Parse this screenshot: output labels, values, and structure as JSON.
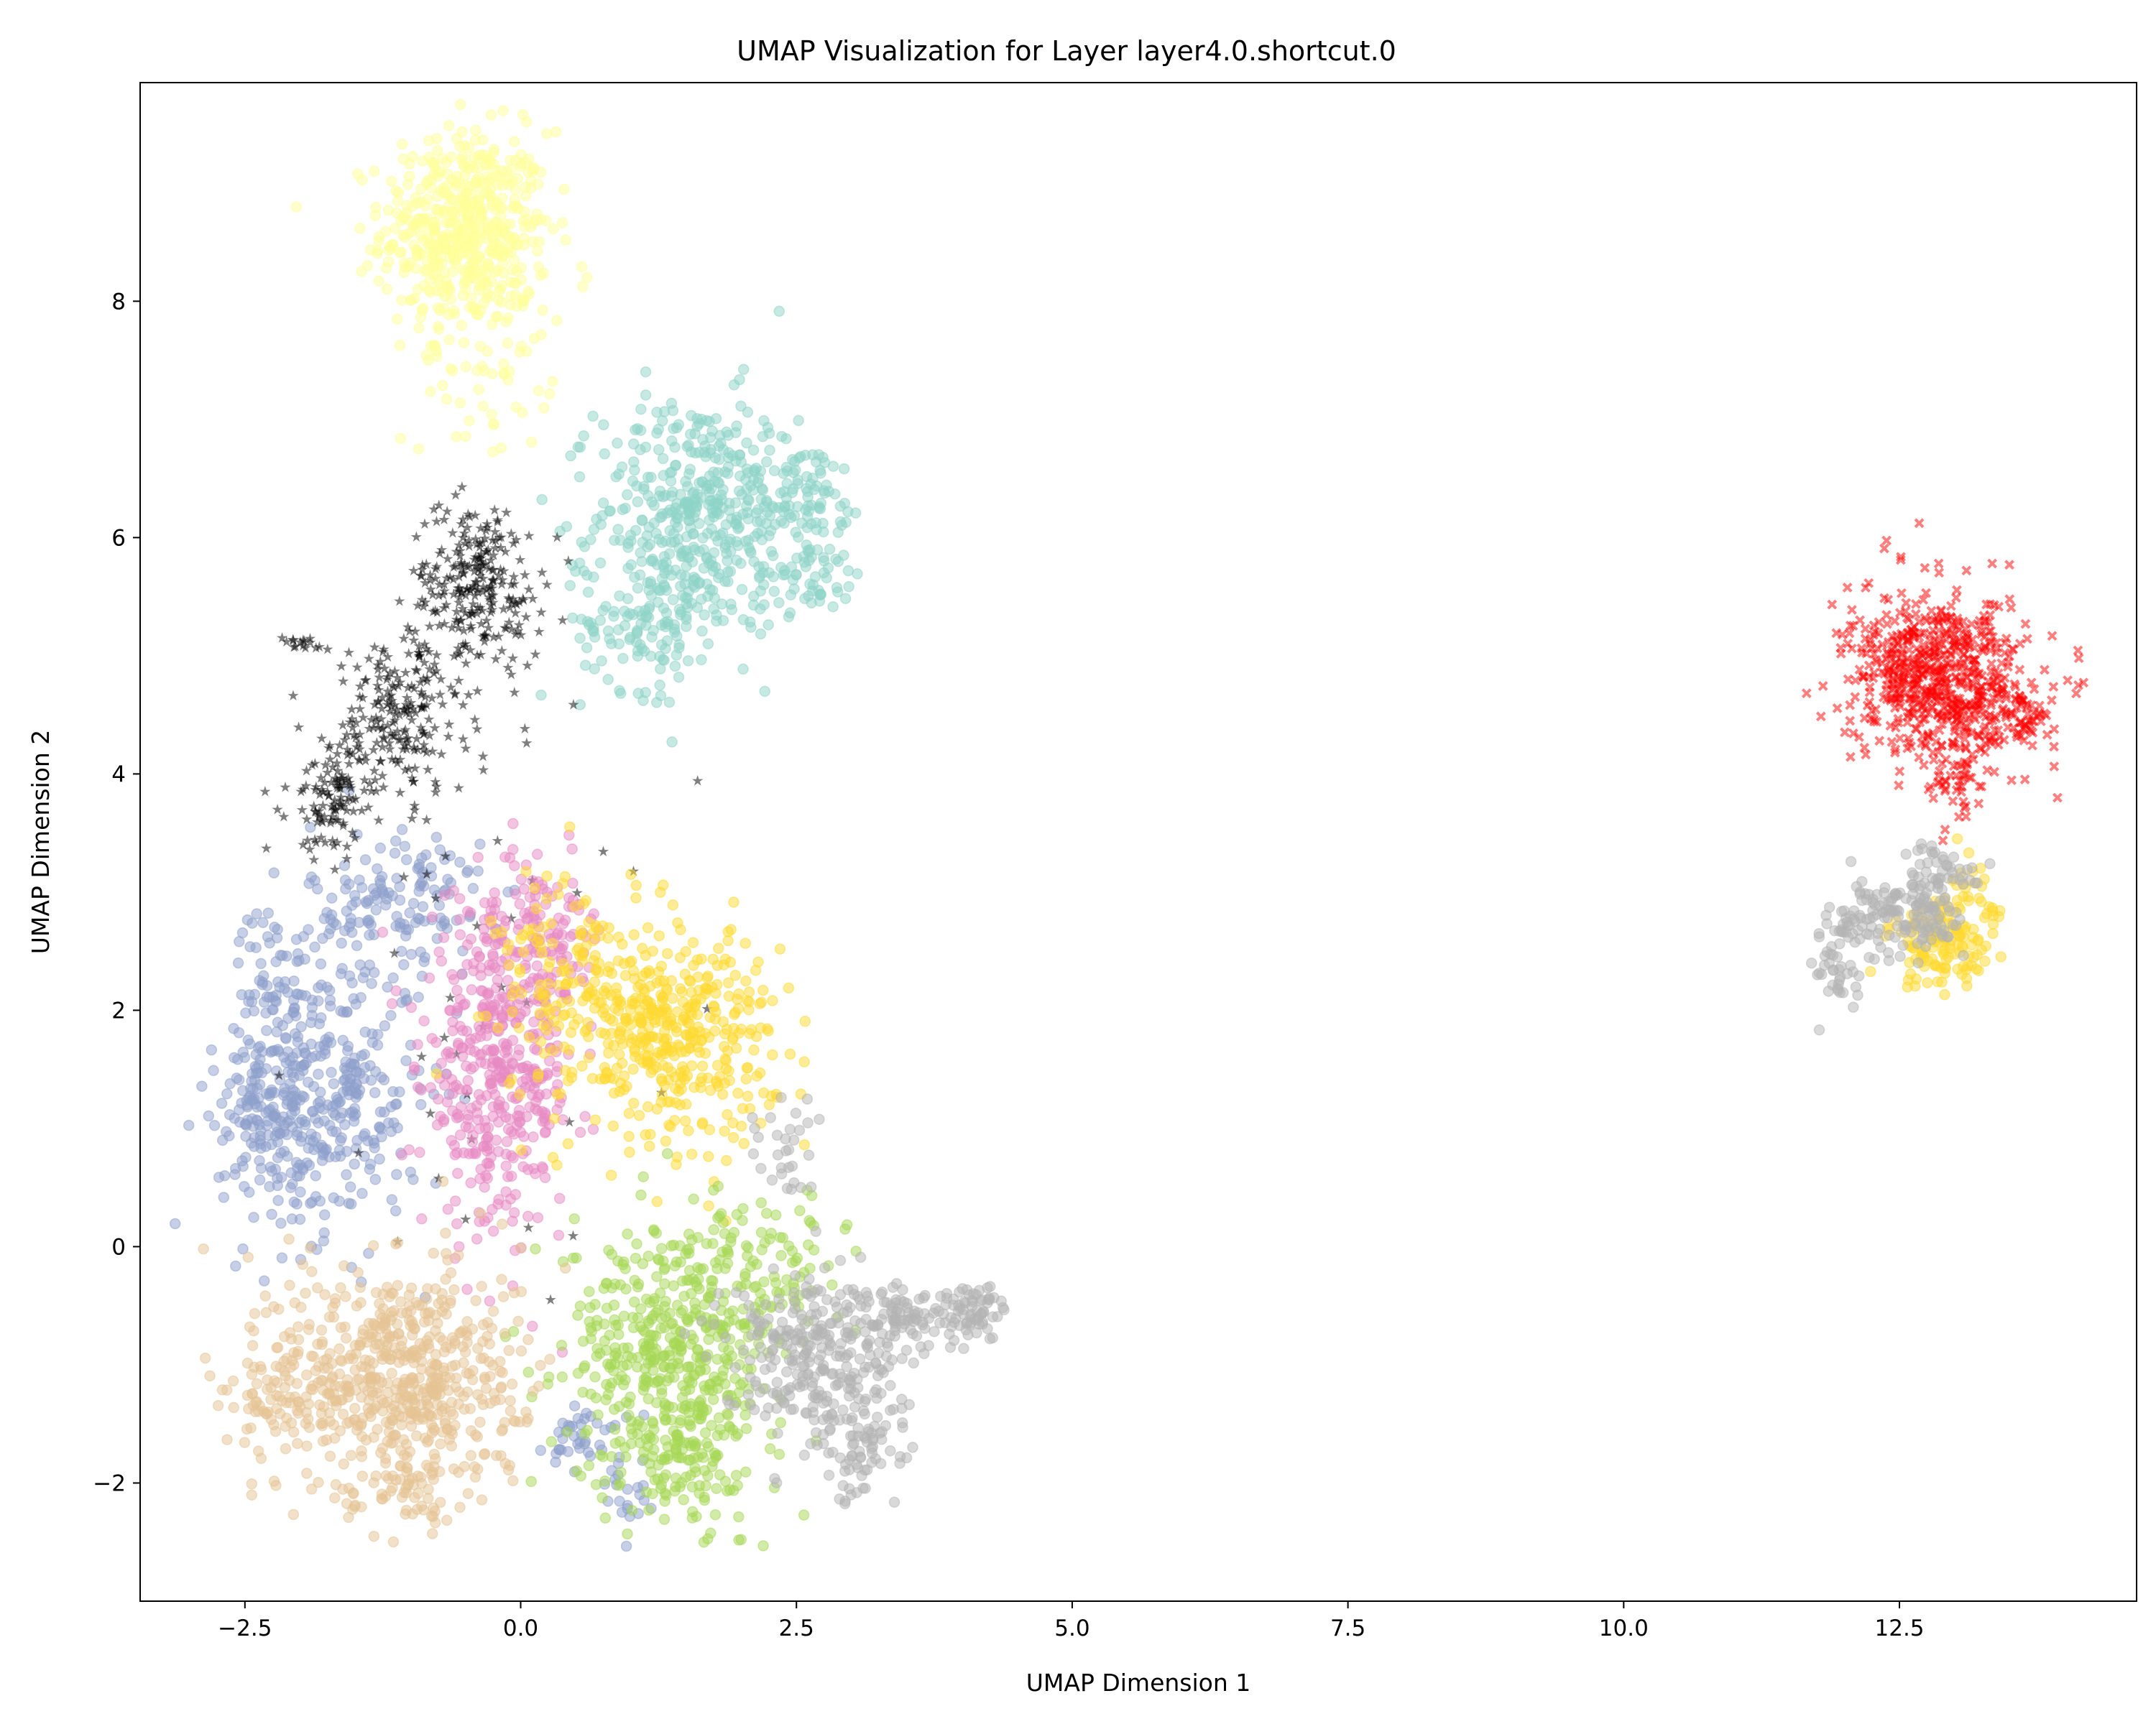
{
  "chart_data": {
    "type": "scatter",
    "title": "UMAP Visualization for Layer layer4.0.shortcut.0",
    "xlabel": "UMAP Dimension 1",
    "ylabel": "UMAP Dimension 2",
    "xlim": [
      -3.45,
      14.65
    ],
    "ylim": [
      -3.0,
      9.85
    ],
    "xticks": [
      -2.5,
      0.0,
      2.5,
      5.0,
      7.5,
      10.0,
      12.5
    ],
    "xtick_labels": [
      "−2.5",
      "0.0",
      "2.5",
      "5.0",
      "7.5",
      "10.0",
      "12.5"
    ],
    "yticks": [
      -2,
      0,
      2,
      4,
      6,
      8
    ],
    "ytick_labels": [
      "−2",
      "0",
      "2",
      "4",
      "6",
      "8"
    ],
    "grid": false,
    "legend": "none",
    "marker_alpha": 0.5,
    "series": [
      {
        "color": "#ffff99",
        "marker": "circle",
        "clusters": [
          {
            "cx": -0.5,
            "cy": 8.6,
            "sx": 0.38,
            "sy": 0.42,
            "n": 520
          },
          {
            "cx": -0.3,
            "cy": 7.6,
            "sx": 0.3,
            "sy": 0.45,
            "n": 70
          }
        ]
      },
      {
        "color": "#8dd3c7",
        "marker": "circle",
        "clusters": [
          {
            "cx": 1.6,
            "cy": 6.2,
            "sx": 0.45,
            "sy": 0.5,
            "n": 420
          },
          {
            "cx": 2.55,
            "cy": 6.4,
            "sx": 0.3,
            "sy": 0.22,
            "n": 80
          },
          {
            "cx": 2.6,
            "cy": 5.65,
            "sx": 0.28,
            "sy": 0.15,
            "n": 60
          },
          {
            "cx": 1.15,
            "cy": 5.3,
            "sx": 0.3,
            "sy": 0.3,
            "n": 120
          }
        ]
      },
      {
        "color": "#8da0cb",
        "marker": "circle",
        "clusters": [
          {
            "cx": -1.8,
            "cy": 1.3,
            "sx": 0.45,
            "sy": 0.6,
            "n": 380
          },
          {
            "cx": -2.35,
            "cy": 1.1,
            "sx": 0.22,
            "sy": 0.3,
            "n": 90
          },
          {
            "cx": -2.25,
            "cy": 2.3,
            "sx": 0.15,
            "sy": 0.3,
            "n": 50
          },
          {
            "cx": -1.1,
            "cy": 2.9,
            "sx": 0.4,
            "sy": 0.35,
            "n": 140
          },
          {
            "cx": 0.6,
            "cy": -1.6,
            "sx": 0.18,
            "sy": 0.15,
            "n": 40
          },
          {
            "cx": 0.95,
            "cy": -2.1,
            "sx": 0.1,
            "sy": 0.15,
            "n": 20
          }
        ]
      },
      {
        "color": "#000000",
        "marker": "star",
        "clusters": [
          {
            "cx": -0.4,
            "cy": 5.6,
            "sx": 0.3,
            "sy": 0.35,
            "n": 260
          },
          {
            "cx": -1.1,
            "cy": 4.5,
            "sx": 0.3,
            "sy": 0.35,
            "n": 200
          },
          {
            "cx": -1.7,
            "cy": 3.8,
            "sx": 0.2,
            "sy": 0.25,
            "n": 120
          },
          {
            "cx": -2.0,
            "cy": 5.1,
            "sx": 0.08,
            "sy": 0.03,
            "n": 15
          },
          {
            "cx": -0.2,
            "cy": 2.5,
            "sx": 0.9,
            "sy": 1.2,
            "n": 40
          }
        ]
      },
      {
        "color": "#e78ac3",
        "marker": "circle",
        "clusters": [
          {
            "cx": -0.2,
            "cy": 1.5,
            "sx": 0.35,
            "sy": 0.7,
            "n": 450
          },
          {
            "cx": 0.2,
            "cy": 2.6,
            "sx": 0.3,
            "sy": 0.3,
            "n": 100
          }
        ]
      },
      {
        "color": "#ffd92f",
        "marker": "circle",
        "clusters": [
          {
            "cx": 1.4,
            "cy": 1.8,
            "sx": 0.45,
            "sy": 0.45,
            "n": 400
          },
          {
            "cx": 0.5,
            "cy": 2.2,
            "sx": 0.35,
            "sy": 0.5,
            "n": 150
          },
          {
            "cx": 12.9,
            "cy": 2.55,
            "sx": 0.25,
            "sy": 0.18,
            "n": 130
          },
          {
            "cx": 13.1,
            "cy": 2.9,
            "sx": 0.12,
            "sy": 0.2,
            "n": 30
          }
        ]
      },
      {
        "color": "#a6d854",
        "marker": "circle",
        "clusters": [
          {
            "cx": 1.4,
            "cy": -0.9,
            "sx": 0.5,
            "sy": 0.55,
            "n": 500
          },
          {
            "cx": 1.5,
            "cy": -1.8,
            "sx": 0.25,
            "sy": 0.25,
            "n": 90
          },
          {
            "cx": 2.3,
            "cy": -0.1,
            "sx": 0.3,
            "sy": 0.25,
            "n": 70
          }
        ]
      },
      {
        "color": "#e5c494",
        "marker": "circle",
        "clusters": [
          {
            "cx": -1.1,
            "cy": -1.1,
            "sx": 0.55,
            "sy": 0.5,
            "n": 600
          },
          {
            "cx": -2.3,
            "cy": -1.3,
            "sx": 0.2,
            "sy": 0.2,
            "n": 60
          },
          {
            "cx": -1.0,
            "cy": -2.0,
            "sx": 0.3,
            "sy": 0.15,
            "n": 60
          }
        ]
      },
      {
        "color": "#b3b3b3",
        "marker": "circle",
        "clusters": [
          {
            "cx": 2.6,
            "cy": -0.9,
            "sx": 0.4,
            "sy": 0.35,
            "n": 260
          },
          {
            "cx": 3.5,
            "cy": -0.6,
            "sx": 0.35,
            "sy": 0.15,
            "n": 110
          },
          {
            "cx": 4.1,
            "cy": -0.55,
            "sx": 0.15,
            "sy": 0.1,
            "n": 50
          },
          {
            "cx": 3.1,
            "cy": -1.7,
            "sx": 0.25,
            "sy": 0.25,
            "n": 80
          },
          {
            "cx": 2.4,
            "cy": 0.8,
            "sx": 0.15,
            "sy": 0.25,
            "n": 30
          },
          {
            "cx": 12.5,
            "cy": 2.8,
            "sx": 0.3,
            "sy": 0.18,
            "n": 160
          },
          {
            "cx": 11.95,
            "cy": 2.35,
            "sx": 0.12,
            "sy": 0.2,
            "n": 40
          },
          {
            "cx": 12.9,
            "cy": 3.2,
            "sx": 0.2,
            "sy": 0.12,
            "n": 40
          }
        ]
      },
      {
        "color": "#ff0000",
        "marker": "x",
        "clusters": [
          {
            "cx": 12.85,
            "cy": 4.8,
            "sx": 0.4,
            "sy": 0.35,
            "n": 650
          },
          {
            "cx": 13.6,
            "cy": 4.5,
            "sx": 0.15,
            "sy": 0.15,
            "n": 60
          },
          {
            "cx": 13.0,
            "cy": 3.9,
            "sx": 0.12,
            "sy": 0.15,
            "n": 40
          }
        ]
      }
    ]
  }
}
